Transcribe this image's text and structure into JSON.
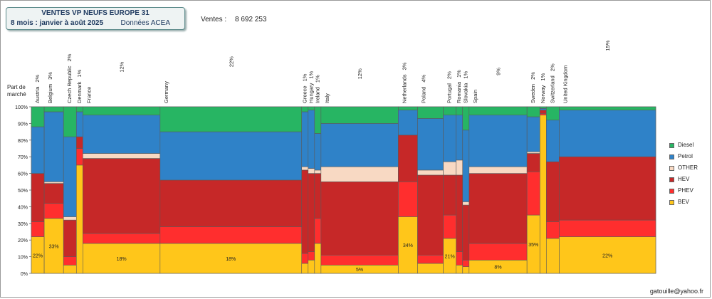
{
  "header": {
    "title": "VENTES VP NEUFS EUROPE 31",
    "period": "8 mois : janvier à août 2025",
    "source": "Données ACEA",
    "sales_label": "Ventes :",
    "sales_value": "8 692 253"
  },
  "y_axis_label": "Part de marché",
  "footer": "gatouille@yahoo.fr",
  "chart_data": {
    "type": "marimekko",
    "title": "VENTES VP NEUFS EUROPE 31",
    "ylim": [
      0,
      100
    ],
    "yticks": [
      "0%",
      "10%",
      "20%",
      "30%",
      "40%",
      "50%",
      "60%",
      "70%",
      "80%",
      "90%",
      "100%"
    ],
    "categories_order_bottom_to_top": [
      "BEV",
      "PHEV",
      "HEV",
      "OTHER",
      "Petrol",
      "Diesel"
    ],
    "legend": [
      {
        "name": "Diesel",
        "color": "#27b563"
      },
      {
        "name": "Petrol",
        "color": "#2f82c8"
      },
      {
        "name": "OTHER",
        "color": "#f8d9c3"
      },
      {
        "name": "HEV",
        "color": "#c62828"
      },
      {
        "name": "PHEV",
        "color": "#ff2e2e"
      },
      {
        "name": "BEV",
        "color": "#ffc61a"
      }
    ],
    "legend_position": "right",
    "series": [
      {
        "country": "Austria",
        "width": 2,
        "width_label": "2%",
        "BEV": 22,
        "PHEV": 9,
        "HEV": 29,
        "OTHER": 0,
        "Petrol": 28,
        "Diesel": 12,
        "bev_label": "22%"
      },
      {
        "country": "Belgium",
        "width": 3,
        "width_label": "3%",
        "BEV": 33,
        "PHEV": 9,
        "HEV": 12,
        "OTHER": 1,
        "Petrol": 42,
        "Diesel": 3,
        "bev_label": "33%"
      },
      {
        "country": "Czech Republic",
        "width": 2,
        "width_label": "2%",
        "BEV": 5,
        "PHEV": 5,
        "HEV": 22,
        "OTHER": 2,
        "Petrol": 48,
        "Diesel": 18,
        "bev_label": ""
      },
      {
        "country": "Denmark",
        "width": 1,
        "width_label": "1%",
        "BEV": 65,
        "PHEV": 10,
        "HEV": 7,
        "OTHER": 0,
        "Petrol": 15,
        "Diesel": 3,
        "bev_label": ""
      },
      {
        "country": "France",
        "width": 12,
        "width_label": "12%",
        "BEV": 18,
        "PHEV": 6,
        "HEV": 45,
        "OTHER": 3,
        "Petrol": 23,
        "Diesel": 5,
        "bev_label": "18%"
      },
      {
        "country": "Germany",
        "width": 22,
        "width_label": "22%",
        "BEV": 18,
        "PHEV": 10,
        "HEV": 28,
        "OTHER": 0,
        "Petrol": 29,
        "Diesel": 15,
        "bev_label": "18%"
      },
      {
        "country": "Greece",
        "width": 1,
        "width_label": "1%",
        "BEV": 6,
        "PHEV": 6,
        "HEV": 50,
        "OTHER": 2,
        "Petrol": 33,
        "Diesel": 3,
        "bev_label": ""
      },
      {
        "country": "Hungary",
        "width": 1,
        "width_label": "1%",
        "BEV": 8,
        "PHEV": 5,
        "HEV": 47,
        "OTHER": 3,
        "Petrol": 35,
        "Diesel": 2,
        "bev_label": ""
      },
      {
        "country": "Ireland",
        "width": 1,
        "width_label": "1%",
        "BEV": 18,
        "PHEV": 15,
        "HEV": 27,
        "OTHER": 2,
        "Petrol": 22,
        "Diesel": 16,
        "bev_label": ""
      },
      {
        "country": "Italy",
        "width": 12,
        "width_label": "12%",
        "BEV": 5,
        "PHEV": 6,
        "HEV": 44,
        "OTHER": 9,
        "Petrol": 26,
        "Diesel": 10,
        "bev_label": "5%"
      },
      {
        "country": "Netherlands",
        "width": 3,
        "width_label": "3%",
        "BEV": 34,
        "PHEV": 21,
        "HEV": 28,
        "OTHER": 0,
        "Petrol": 15,
        "Diesel": 2,
        "bev_label": "34%"
      },
      {
        "country": "Poland",
        "width": 4,
        "width_label": "4%",
        "BEV": 6,
        "PHEV": 5,
        "HEV": 48,
        "OTHER": 3,
        "Petrol": 31,
        "Diesel": 7,
        "bev_label": ""
      },
      {
        "country": "Portugal",
        "width": 2,
        "width_label": "2%",
        "BEV": 21,
        "PHEV": 14,
        "HEV": 24,
        "OTHER": 8,
        "Petrol": 28,
        "Diesel": 5,
        "bev_label": "21%"
      },
      {
        "country": "Romania",
        "width": 1,
        "width_label": "1%",
        "BEV": 5,
        "PHEV": 8,
        "HEV": 46,
        "OTHER": 9,
        "Petrol": 27,
        "Diesel": 5,
        "bev_label": ""
      },
      {
        "country": "Slovakia",
        "width": 1,
        "width_label": "1%",
        "BEV": 4,
        "PHEV": 4,
        "HEV": 33,
        "OTHER": 2,
        "Petrol": 43,
        "Diesel": 14,
        "bev_label": ""
      },
      {
        "country": "Spain",
        "width": 9,
        "width_label": "9%",
        "BEV": 8,
        "PHEV": 10,
        "HEV": 42,
        "OTHER": 4,
        "Petrol": 31,
        "Diesel": 5,
        "bev_label": "8%"
      },
      {
        "country": "Sweden",
        "width": 2,
        "width_label": "2%",
        "BEV": 35,
        "PHEV": 26,
        "HEV": 11,
        "OTHER": 1,
        "Petrol": 21,
        "Diesel": 6,
        "bev_label": "35%"
      },
      {
        "country": "Norway",
        "width": 1,
        "width_label": "1%",
        "BEV": 95,
        "PHEV": 1,
        "HEV": 2,
        "OTHER": 0,
        "Petrol": 1,
        "Diesel": 1,
        "bev_label": ""
      },
      {
        "country": "Switzerland",
        "width": 2,
        "width_label": "2%",
        "BEV": 21,
        "PHEV": 10,
        "HEV": 36,
        "OTHER": 0,
        "Petrol": 25,
        "Diesel": 8,
        "bev_label": ""
      },
      {
        "country": "United Kingdom",
        "width": 15,
        "width_label": "15%",
        "BEV": 22,
        "PHEV": 10,
        "HEV": 38,
        "OTHER": 0,
        "Petrol": 28,
        "Diesel": 2,
        "bev_label": "22%"
      }
    ]
  }
}
